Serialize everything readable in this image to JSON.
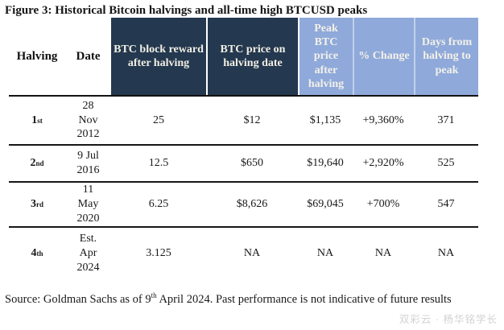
{
  "title": "Figure 3: Historical Bitcoin halvings and all-time high BTCUSD peaks",
  "colors": {
    "navy_header": "#24384F",
    "blue_header": "#8FA9DA",
    "header_text": "#F2EFE4",
    "rule_black": "#141414",
    "watermark_gray": "#d2d2d2"
  },
  "table": {
    "columns": [
      {
        "label": "Halving"
      },
      {
        "label": "Date"
      },
      {
        "label": "BTC block reward after halving"
      },
      {
        "label": "BTC price on halving date"
      },
      {
        "label": "Peak BTC price after halving"
      },
      {
        "label": "% Change"
      },
      {
        "label": "Days from halving to peak"
      }
    ],
    "rows": [
      {
        "ordinal": "1",
        "ordinal_suffix": "st",
        "date": "28\nNov\n2012",
        "reward": "25",
        "price": "$12",
        "peak": "$1,135",
        "change": "+9,360%",
        "days": "371"
      },
      {
        "ordinal": "2",
        "ordinal_suffix": "nd",
        "date": "9 Jul\n2016",
        "reward": "12.5",
        "price": "$650",
        "peak": "$19,640",
        "change": "+2,920%",
        "days": "525"
      },
      {
        "ordinal": "3",
        "ordinal_suffix": "rd",
        "date": "11\nMay\n2020",
        "reward": "6.25",
        "price": "$8,626",
        "peak": "$69,045",
        "change": "+700%",
        "days": "547"
      },
      {
        "ordinal": "4",
        "ordinal_suffix": "th",
        "date": "Est.\nApr\n2024",
        "reward": "3.125",
        "price": "NA",
        "peak": "NA",
        "change": "NA",
        "days": "NA"
      }
    ]
  },
  "source": {
    "prefix": "Source: Goldman Sachs as of 9",
    "sup": "th",
    "suffix": " April 2024. Past performance is not indicative of future results"
  },
  "watermark": "双彩云 · 杨华铭学长"
}
